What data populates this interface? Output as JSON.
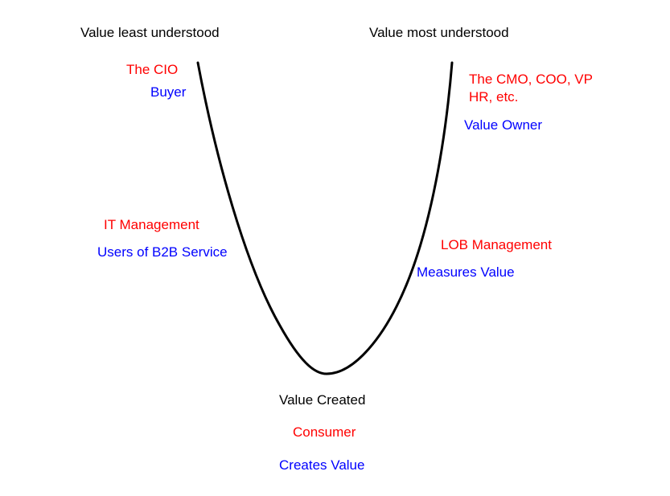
{
  "diagram": {
    "headers": {
      "left": "Value least understood",
      "right": "Value most understood"
    },
    "left_top": {
      "role": "The CIO",
      "descriptor": "Buyer"
    },
    "right_top": {
      "role": "The CMO, COO, VP HR, etc.",
      "descriptor": "Value Owner"
    },
    "left_middle": {
      "role": "IT Management",
      "descriptor": "Users of B2B Service"
    },
    "right_middle": {
      "role": "LOB Management",
      "descriptor": "Measures Value"
    },
    "bottom": {
      "title": "Value Created",
      "role": "Consumer",
      "descriptor": "Creates Value"
    },
    "colors": {
      "text": "#000000",
      "role": "#ff0000",
      "descriptor": "#0000ff",
      "curve": "#000000"
    }
  }
}
